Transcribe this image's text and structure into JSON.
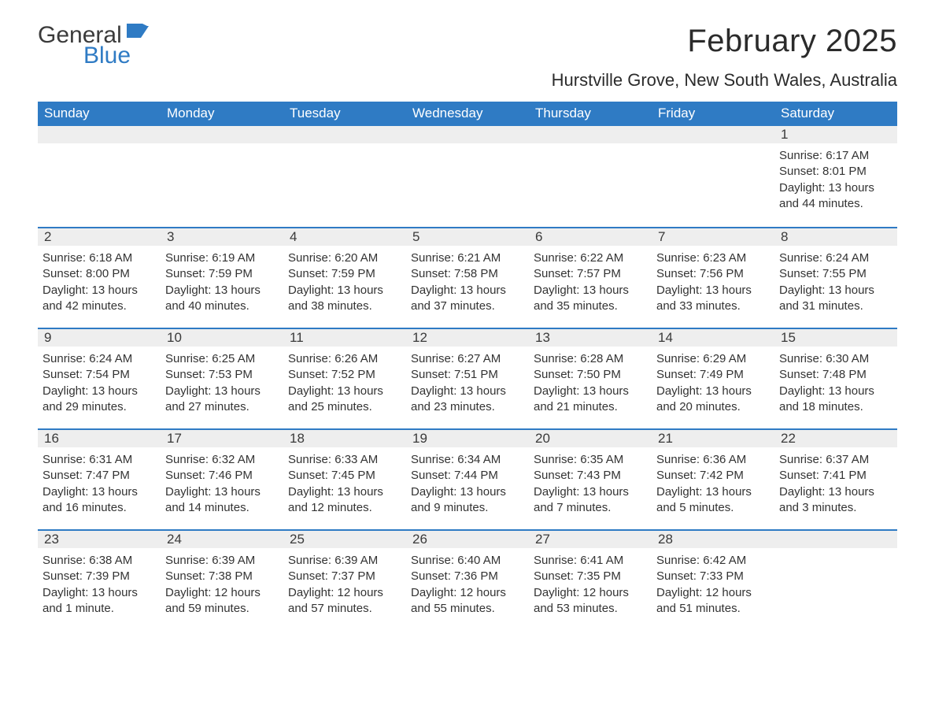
{
  "brand": {
    "word1": "General",
    "word2": "Blue",
    "text_color": "#3b3b3b",
    "accent_color": "#2f7bc4"
  },
  "header": {
    "month_title": "February 2025",
    "location": "Hurstville Grove, New South Wales, Australia"
  },
  "colors": {
    "header_bg": "#2f7bc4",
    "header_text": "#ffffff",
    "band_bg": "#eeeeee",
    "rule": "#2f7bc4",
    "body_text": "#333333",
    "page_bg": "#ffffff"
  },
  "days_of_week": [
    "Sunday",
    "Monday",
    "Tuesday",
    "Wednesday",
    "Thursday",
    "Friday",
    "Saturday"
  ],
  "weeks": [
    [
      {
        "n": "",
        "sunrise": "",
        "sunset": "",
        "daylight": ""
      },
      {
        "n": "",
        "sunrise": "",
        "sunset": "",
        "daylight": ""
      },
      {
        "n": "",
        "sunrise": "",
        "sunset": "",
        "daylight": ""
      },
      {
        "n": "",
        "sunrise": "",
        "sunset": "",
        "daylight": ""
      },
      {
        "n": "",
        "sunrise": "",
        "sunset": "",
        "daylight": ""
      },
      {
        "n": "",
        "sunrise": "",
        "sunset": "",
        "daylight": ""
      },
      {
        "n": "1",
        "sunrise": "Sunrise: 6:17 AM",
        "sunset": "Sunset: 8:01 PM",
        "daylight": "Daylight: 13 hours and 44 minutes."
      }
    ],
    [
      {
        "n": "2",
        "sunrise": "Sunrise: 6:18 AM",
        "sunset": "Sunset: 8:00 PM",
        "daylight": "Daylight: 13 hours and 42 minutes."
      },
      {
        "n": "3",
        "sunrise": "Sunrise: 6:19 AM",
        "sunset": "Sunset: 7:59 PM",
        "daylight": "Daylight: 13 hours and 40 minutes."
      },
      {
        "n": "4",
        "sunrise": "Sunrise: 6:20 AM",
        "sunset": "Sunset: 7:59 PM",
        "daylight": "Daylight: 13 hours and 38 minutes."
      },
      {
        "n": "5",
        "sunrise": "Sunrise: 6:21 AM",
        "sunset": "Sunset: 7:58 PM",
        "daylight": "Daylight: 13 hours and 37 minutes."
      },
      {
        "n": "6",
        "sunrise": "Sunrise: 6:22 AM",
        "sunset": "Sunset: 7:57 PM",
        "daylight": "Daylight: 13 hours and 35 minutes."
      },
      {
        "n": "7",
        "sunrise": "Sunrise: 6:23 AM",
        "sunset": "Sunset: 7:56 PM",
        "daylight": "Daylight: 13 hours and 33 minutes."
      },
      {
        "n": "8",
        "sunrise": "Sunrise: 6:24 AM",
        "sunset": "Sunset: 7:55 PM",
        "daylight": "Daylight: 13 hours and 31 minutes."
      }
    ],
    [
      {
        "n": "9",
        "sunrise": "Sunrise: 6:24 AM",
        "sunset": "Sunset: 7:54 PM",
        "daylight": "Daylight: 13 hours and 29 minutes."
      },
      {
        "n": "10",
        "sunrise": "Sunrise: 6:25 AM",
        "sunset": "Sunset: 7:53 PM",
        "daylight": "Daylight: 13 hours and 27 minutes."
      },
      {
        "n": "11",
        "sunrise": "Sunrise: 6:26 AM",
        "sunset": "Sunset: 7:52 PM",
        "daylight": "Daylight: 13 hours and 25 minutes."
      },
      {
        "n": "12",
        "sunrise": "Sunrise: 6:27 AM",
        "sunset": "Sunset: 7:51 PM",
        "daylight": "Daylight: 13 hours and 23 minutes."
      },
      {
        "n": "13",
        "sunrise": "Sunrise: 6:28 AM",
        "sunset": "Sunset: 7:50 PM",
        "daylight": "Daylight: 13 hours and 21 minutes."
      },
      {
        "n": "14",
        "sunrise": "Sunrise: 6:29 AM",
        "sunset": "Sunset: 7:49 PM",
        "daylight": "Daylight: 13 hours and 20 minutes."
      },
      {
        "n": "15",
        "sunrise": "Sunrise: 6:30 AM",
        "sunset": "Sunset: 7:48 PM",
        "daylight": "Daylight: 13 hours and 18 minutes."
      }
    ],
    [
      {
        "n": "16",
        "sunrise": "Sunrise: 6:31 AM",
        "sunset": "Sunset: 7:47 PM",
        "daylight": "Daylight: 13 hours and 16 minutes."
      },
      {
        "n": "17",
        "sunrise": "Sunrise: 6:32 AM",
        "sunset": "Sunset: 7:46 PM",
        "daylight": "Daylight: 13 hours and 14 minutes."
      },
      {
        "n": "18",
        "sunrise": "Sunrise: 6:33 AM",
        "sunset": "Sunset: 7:45 PM",
        "daylight": "Daylight: 13 hours and 12 minutes."
      },
      {
        "n": "19",
        "sunrise": "Sunrise: 6:34 AM",
        "sunset": "Sunset: 7:44 PM",
        "daylight": "Daylight: 13 hours and 9 minutes."
      },
      {
        "n": "20",
        "sunrise": "Sunrise: 6:35 AM",
        "sunset": "Sunset: 7:43 PM",
        "daylight": "Daylight: 13 hours and 7 minutes."
      },
      {
        "n": "21",
        "sunrise": "Sunrise: 6:36 AM",
        "sunset": "Sunset: 7:42 PM",
        "daylight": "Daylight: 13 hours and 5 minutes."
      },
      {
        "n": "22",
        "sunrise": "Sunrise: 6:37 AM",
        "sunset": "Sunset: 7:41 PM",
        "daylight": "Daylight: 13 hours and 3 minutes."
      }
    ],
    [
      {
        "n": "23",
        "sunrise": "Sunrise: 6:38 AM",
        "sunset": "Sunset: 7:39 PM",
        "daylight": "Daylight: 13 hours and 1 minute."
      },
      {
        "n": "24",
        "sunrise": "Sunrise: 6:39 AM",
        "sunset": "Sunset: 7:38 PM",
        "daylight": "Daylight: 12 hours and 59 minutes."
      },
      {
        "n": "25",
        "sunrise": "Sunrise: 6:39 AM",
        "sunset": "Sunset: 7:37 PM",
        "daylight": "Daylight: 12 hours and 57 minutes."
      },
      {
        "n": "26",
        "sunrise": "Sunrise: 6:40 AM",
        "sunset": "Sunset: 7:36 PM",
        "daylight": "Daylight: 12 hours and 55 minutes."
      },
      {
        "n": "27",
        "sunrise": "Sunrise: 6:41 AM",
        "sunset": "Sunset: 7:35 PM",
        "daylight": "Daylight: 12 hours and 53 minutes."
      },
      {
        "n": "28",
        "sunrise": "Sunrise: 6:42 AM",
        "sunset": "Sunset: 7:33 PM",
        "daylight": "Daylight: 12 hours and 51 minutes."
      },
      {
        "n": "",
        "sunrise": "",
        "sunset": "",
        "daylight": ""
      }
    ]
  ]
}
